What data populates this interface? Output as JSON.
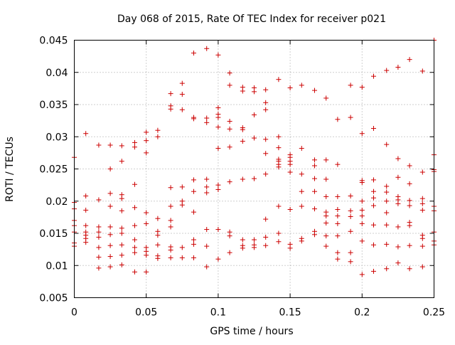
{
  "chart_data": {
    "type": "scatter",
    "title": "Day 068 of 2015, Rate Of TEC Index for receiver p021",
    "xlabel": "GPS time / hours",
    "ylabel": "ROTI / TECUs",
    "xlim": [
      0,
      0.25
    ],
    "ylim": [
      0.005,
      0.045
    ],
    "x_ticks": [
      0,
      0.05,
      0.1,
      0.15,
      0.2,
      0.25
    ],
    "x_tick_labels": [
      "0",
      "0.05",
      "0.1",
      "0.15",
      "0.2",
      "0.25"
    ],
    "y_ticks": [
      0.005,
      0.01,
      0.015,
      0.02,
      0.025,
      0.03,
      0.035,
      0.04,
      0.045
    ],
    "y_tick_labels": [
      "0.005",
      "0.01",
      "0.015",
      "0.02",
      "0.025",
      "0.03",
      "0.035",
      "0.04",
      "0.045"
    ],
    "grid": true,
    "marker": "+",
    "marker_color": "#cc0000",
    "series": [
      {
        "name": "ROTI",
        "points": [
          [
            0.0,
            0.0268
          ],
          [
            0.0,
            0.0198
          ],
          [
            0.0,
            0.0188
          ],
          [
            0.0,
            0.017
          ],
          [
            0.0,
            0.0162
          ],
          [
            0.0,
            0.0152
          ],
          [
            0.0,
            0.0135
          ],
          [
            0.0,
            0.013
          ],
          [
            0.008,
            0.0305
          ],
          [
            0.008,
            0.0208
          ],
          [
            0.008,
            0.0186
          ],
          [
            0.008,
            0.0162
          ],
          [
            0.008,
            0.0152
          ],
          [
            0.008,
            0.0147
          ],
          [
            0.008,
            0.0142
          ],
          [
            0.008,
            0.0136
          ],
          [
            0.017,
            0.0287
          ],
          [
            0.017,
            0.0202
          ],
          [
            0.017,
            0.016
          ],
          [
            0.017,
            0.0152
          ],
          [
            0.017,
            0.0144
          ],
          [
            0.017,
            0.0128
          ],
          [
            0.017,
            0.0113
          ],
          [
            0.017,
            0.0096
          ],
          [
            0.025,
            0.0287
          ],
          [
            0.025,
            0.025
          ],
          [
            0.025,
            0.0212
          ],
          [
            0.025,
            0.0192
          ],
          [
            0.025,
            0.016
          ],
          [
            0.025,
            0.0148
          ],
          [
            0.025,
            0.0131
          ],
          [
            0.025,
            0.0114
          ],
          [
            0.025,
            0.0098
          ],
          [
            0.033,
            0.0286
          ],
          [
            0.033,
            0.0262
          ],
          [
            0.033,
            0.021
          ],
          [
            0.033,
            0.0204
          ],
          [
            0.033,
            0.0185
          ],
          [
            0.033,
            0.0158
          ],
          [
            0.033,
            0.015
          ],
          [
            0.033,
            0.0132
          ],
          [
            0.033,
            0.0116
          ],
          [
            0.033,
            0.0101
          ],
          [
            0.042,
            0.0291
          ],
          [
            0.042,
            0.0284
          ],
          [
            0.042,
            0.0226
          ],
          [
            0.042,
            0.019
          ],
          [
            0.042,
            0.0162
          ],
          [
            0.042,
            0.014
          ],
          [
            0.042,
            0.0128
          ],
          [
            0.042,
            0.012
          ],
          [
            0.042,
            0.009
          ],
          [
            0.05,
            0.0307
          ],
          [
            0.05,
            0.0294
          ],
          [
            0.05,
            0.0275
          ],
          [
            0.05,
            0.0182
          ],
          [
            0.05,
            0.0165
          ],
          [
            0.05,
            0.0128
          ],
          [
            0.05,
            0.0122
          ],
          [
            0.05,
            0.0116
          ],
          [
            0.05,
            0.009
          ],
          [
            0.058,
            0.031
          ],
          [
            0.058,
            0.03
          ],
          [
            0.058,
            0.0173
          ],
          [
            0.058,
            0.0153
          ],
          [
            0.058,
            0.0147
          ],
          [
            0.058,
            0.0132
          ],
          [
            0.058,
            0.0115
          ],
          [
            0.058,
            0.0111
          ],
          [
            0.067,
            0.0367
          ],
          [
            0.067,
            0.0348
          ],
          [
            0.067,
            0.0343
          ],
          [
            0.067,
            0.0221
          ],
          [
            0.067,
            0.0192
          ],
          [
            0.067,
            0.017
          ],
          [
            0.067,
            0.016
          ],
          [
            0.067,
            0.0129
          ],
          [
            0.067,
            0.0124
          ],
          [
            0.067,
            0.0112
          ],
          [
            0.075,
            0.0383
          ],
          [
            0.075,
            0.0366
          ],
          [
            0.075,
            0.0342
          ],
          [
            0.075,
            0.0222
          ],
          [
            0.075,
            0.02
          ],
          [
            0.075,
            0.0194
          ],
          [
            0.075,
            0.0128
          ],
          [
            0.075,
            0.0112
          ],
          [
            0.083,
            0.043
          ],
          [
            0.083,
            0.033
          ],
          [
            0.083,
            0.0328
          ],
          [
            0.083,
            0.0233
          ],
          [
            0.083,
            0.0215
          ],
          [
            0.083,
            0.0183
          ],
          [
            0.083,
            0.014
          ],
          [
            0.083,
            0.0133
          ],
          [
            0.083,
            0.0112
          ],
          [
            0.092,
            0.0437
          ],
          [
            0.092,
            0.0329
          ],
          [
            0.092,
            0.0322
          ],
          [
            0.092,
            0.0234
          ],
          [
            0.092,
            0.0222
          ],
          [
            0.092,
            0.0213
          ],
          [
            0.092,
            0.0156
          ],
          [
            0.092,
            0.013
          ],
          [
            0.092,
            0.0098
          ],
          [
            0.1,
            0.0427
          ],
          [
            0.1,
            0.0345
          ],
          [
            0.1,
            0.0335
          ],
          [
            0.1,
            0.033
          ],
          [
            0.1,
            0.0315
          ],
          [
            0.1,
            0.0282
          ],
          [
            0.1,
            0.0225
          ],
          [
            0.1,
            0.0218
          ],
          [
            0.1,
            0.0156
          ],
          [
            0.1,
            0.011
          ],
          [
            0.108,
            0.0399
          ],
          [
            0.108,
            0.038
          ],
          [
            0.108,
            0.0324
          ],
          [
            0.108,
            0.0312
          ],
          [
            0.108,
            0.0284
          ],
          [
            0.108,
            0.023
          ],
          [
            0.108,
            0.0152
          ],
          [
            0.108,
            0.0146
          ],
          [
            0.108,
            0.012
          ],
          [
            0.117,
            0.0377
          ],
          [
            0.117,
            0.0371
          ],
          [
            0.117,
            0.0314
          ],
          [
            0.117,
            0.0311
          ],
          [
            0.117,
            0.0293
          ],
          [
            0.117,
            0.0234
          ],
          [
            0.117,
            0.014
          ],
          [
            0.117,
            0.0131
          ],
          [
            0.117,
            0.0127
          ],
          [
            0.125,
            0.0376
          ],
          [
            0.125,
            0.037
          ],
          [
            0.125,
            0.0334
          ],
          [
            0.125,
            0.0298
          ],
          [
            0.125,
            0.0235
          ],
          [
            0.125,
            0.014
          ],
          [
            0.125,
            0.0132
          ],
          [
            0.125,
            0.0128
          ],
          [
            0.133,
            0.0373
          ],
          [
            0.133,
            0.0353
          ],
          [
            0.133,
            0.0342
          ],
          [
            0.133,
            0.0296
          ],
          [
            0.133,
            0.0274
          ],
          [
            0.133,
            0.0242
          ],
          [
            0.133,
            0.0172
          ],
          [
            0.133,
            0.0144
          ],
          [
            0.133,
            0.0131
          ],
          [
            0.142,
            0.0389
          ],
          [
            0.142,
            0.03
          ],
          [
            0.142,
            0.0283
          ],
          [
            0.142,
            0.0265
          ],
          [
            0.142,
            0.0262
          ],
          [
            0.142,
            0.0257
          ],
          [
            0.142,
            0.0253
          ],
          [
            0.142,
            0.0192
          ],
          [
            0.142,
            0.015
          ],
          [
            0.142,
            0.0137
          ],
          [
            0.15,
            0.0376
          ],
          [
            0.15,
            0.0272
          ],
          [
            0.15,
            0.0268
          ],
          [
            0.15,
            0.0262
          ],
          [
            0.15,
            0.0257
          ],
          [
            0.15,
            0.0245
          ],
          [
            0.15,
            0.0187
          ],
          [
            0.15,
            0.0133
          ],
          [
            0.15,
            0.0127
          ],
          [
            0.158,
            0.038
          ],
          [
            0.158,
            0.0282
          ],
          [
            0.158,
            0.0242
          ],
          [
            0.158,
            0.0215
          ],
          [
            0.158,
            0.0192
          ],
          [
            0.158,
            0.0142
          ],
          [
            0.158,
            0.0138
          ],
          [
            0.167,
            0.0372
          ],
          [
            0.167,
            0.0264
          ],
          [
            0.167,
            0.0255
          ],
          [
            0.167,
            0.0235
          ],
          [
            0.167,
            0.0215
          ],
          [
            0.167,
            0.0188
          ],
          [
            0.167,
            0.0153
          ],
          [
            0.167,
            0.0148
          ],
          [
            0.175,
            0.036
          ],
          [
            0.175,
            0.0264
          ],
          [
            0.175,
            0.0234
          ],
          [
            0.175,
            0.0207
          ],
          [
            0.175,
            0.0183
          ],
          [
            0.175,
            0.0177
          ],
          [
            0.175,
            0.0166
          ],
          [
            0.175,
            0.0146
          ],
          [
            0.175,
            0.013
          ],
          [
            0.183,
            0.0327
          ],
          [
            0.183,
            0.0257
          ],
          [
            0.183,
            0.0207
          ],
          [
            0.183,
            0.0187
          ],
          [
            0.183,
            0.0177
          ],
          [
            0.183,
            0.0165
          ],
          [
            0.183,
            0.0146
          ],
          [
            0.183,
            0.012
          ],
          [
            0.183,
            0.011
          ],
          [
            0.192,
            0.038
          ],
          [
            0.192,
            0.033
          ],
          [
            0.192,
            0.0208
          ],
          [
            0.192,
            0.0185
          ],
          [
            0.192,
            0.0176
          ],
          [
            0.192,
            0.0153
          ],
          [
            0.192,
            0.012
          ],
          [
            0.192,
            0.0106
          ],
          [
            0.2,
            0.0377
          ],
          [
            0.2,
            0.0305
          ],
          [
            0.2,
            0.0232
          ],
          [
            0.2,
            0.0229
          ],
          [
            0.2,
            0.02
          ],
          [
            0.2,
            0.0186
          ],
          [
            0.2,
            0.0177
          ],
          [
            0.2,
            0.0165
          ],
          [
            0.2,
            0.0138
          ],
          [
            0.2,
            0.0086
          ],
          [
            0.208,
            0.0394
          ],
          [
            0.208,
            0.0313
          ],
          [
            0.208,
            0.0233
          ],
          [
            0.208,
            0.0215
          ],
          [
            0.208,
            0.0205
          ],
          [
            0.208,
            0.0193
          ],
          [
            0.208,
            0.0163
          ],
          [
            0.208,
            0.0132
          ],
          [
            0.208,
            0.0091
          ],
          [
            0.217,
            0.0403
          ],
          [
            0.217,
            0.0288
          ],
          [
            0.217,
            0.0223
          ],
          [
            0.217,
            0.0214
          ],
          [
            0.217,
            0.02
          ],
          [
            0.217,
            0.0182
          ],
          [
            0.217,
            0.0163
          ],
          [
            0.217,
            0.0133
          ],
          [
            0.217,
            0.0095
          ],
          [
            0.225,
            0.0408
          ],
          [
            0.225,
            0.0266
          ],
          [
            0.225,
            0.0237
          ],
          [
            0.225,
            0.0207
          ],
          [
            0.225,
            0.0202
          ],
          [
            0.225,
            0.0196
          ],
          [
            0.225,
            0.016
          ],
          [
            0.225,
            0.0129
          ],
          [
            0.225,
            0.0104
          ],
          [
            0.233,
            0.042
          ],
          [
            0.233,
            0.0255
          ],
          [
            0.233,
            0.0227
          ],
          [
            0.233,
            0.0201
          ],
          [
            0.233,
            0.0193
          ],
          [
            0.233,
            0.0167
          ],
          [
            0.233,
            0.0162
          ],
          [
            0.233,
            0.0131
          ],
          [
            0.233,
            0.0095
          ],
          [
            0.242,
            0.0402
          ],
          [
            0.242,
            0.0245
          ],
          [
            0.242,
            0.0204
          ],
          [
            0.242,
            0.0196
          ],
          [
            0.242,
            0.0186
          ],
          [
            0.242,
            0.0147
          ],
          [
            0.242,
            0.0142
          ],
          [
            0.242,
            0.013
          ],
          [
            0.242,
            0.0098
          ],
          [
            0.25,
            0.045
          ],
          [
            0.25,
            0.0272
          ],
          [
            0.25,
            0.0249
          ],
          [
            0.25,
            0.0246
          ],
          [
            0.25,
            0.0192
          ],
          [
            0.25,
            0.0185
          ],
          [
            0.25,
            0.0152
          ],
          [
            0.25,
            0.0138
          ],
          [
            0.25,
            0.0132
          ]
        ]
      }
    ]
  }
}
